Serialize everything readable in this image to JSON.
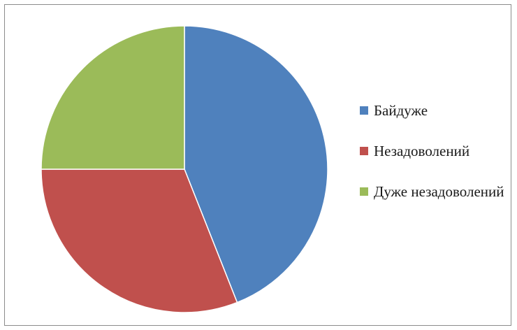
{
  "chart_data": {
    "type": "pie",
    "title": "",
    "legend_position": "right",
    "categories": [
      "Байдуже",
      "Незадоволений",
      "Дуже незадоволений"
    ],
    "values": [
      44,
      31,
      25
    ],
    "colors": [
      "#4f81bd",
      "#c0504d",
      "#9bbb59"
    ]
  },
  "legend": {
    "items": [
      {
        "label": "Байдуже",
        "color": "#4f81bd"
      },
      {
        "label": "Незадоволений",
        "color": "#c0504d"
      },
      {
        "label": "Дуже незадоволений",
        "color": "#9bbb59"
      }
    ]
  }
}
